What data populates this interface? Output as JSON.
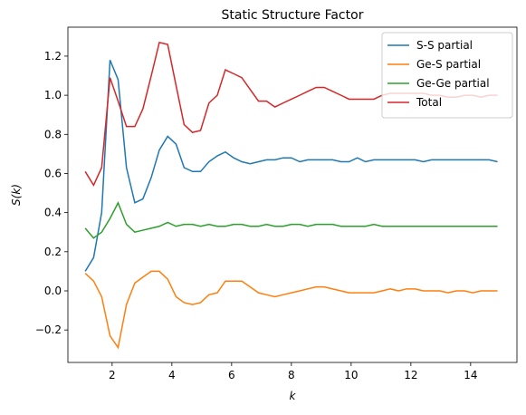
{
  "chart_data": {
    "type": "line",
    "title": "Static Structure Factor",
    "x_label": "k",
    "y_label": "S(k)",
    "x": [
      1.1,
      1.38,
      1.65,
      1.93,
      2.2,
      2.48,
      2.76,
      3.03,
      3.31,
      3.58,
      3.86,
      4.14,
      4.41,
      4.69,
      4.96,
      5.24,
      5.52,
      5.79,
      6.07,
      6.34,
      6.62,
      6.9,
      7.17,
      7.45,
      7.72,
      8.0,
      8.28,
      8.55,
      8.83,
      9.1,
      9.38,
      9.66,
      9.93,
      10.21,
      10.48,
      10.76,
      11.04,
      11.31,
      11.59,
      11.86,
      12.14,
      12.42,
      12.69,
      12.97,
      13.24,
      13.52,
      13.8,
      14.07,
      14.35,
      14.62,
      14.9
    ],
    "series": [
      {
        "name": "S-S partial",
        "color": "#1f77b4",
        "values": [
          0.1,
          0.17,
          0.4,
          1.18,
          1.08,
          0.63,
          0.45,
          0.47,
          0.58,
          0.72,
          0.79,
          0.75,
          0.63,
          0.61,
          0.61,
          0.66,
          0.69,
          0.71,
          0.68,
          0.66,
          0.65,
          0.66,
          0.67,
          0.67,
          0.68,
          0.68,
          0.66,
          0.67,
          0.67,
          0.67,
          0.67,
          0.66,
          0.66,
          0.68,
          0.66,
          0.67,
          0.67,
          0.67,
          0.67,
          0.67,
          0.67,
          0.66,
          0.67,
          0.67,
          0.67,
          0.67,
          0.67,
          0.67,
          0.67,
          0.67,
          0.66
        ]
      },
      {
        "name": "Ge-S partial",
        "color": "#ff7f0e",
        "values": [
          0.09,
          0.05,
          -0.03,
          -0.23,
          -0.29,
          -0.07,
          0.04,
          0.07,
          0.1,
          0.1,
          0.06,
          -0.03,
          -0.06,
          -0.07,
          -0.06,
          -0.02,
          -0.01,
          0.05,
          0.05,
          0.05,
          0.02,
          -0.01,
          -0.02,
          -0.03,
          -0.02,
          -0.01,
          0.0,
          0.01,
          0.02,
          0.02,
          0.01,
          0.0,
          -0.01,
          -0.01,
          -0.01,
          -0.01,
          0.0,
          0.01,
          0.0,
          0.01,
          0.01,
          0.0,
          0.0,
          0.0,
          -0.01,
          0.0,
          0.0,
          -0.01,
          0.0,
          0.0,
          0.0
        ]
      },
      {
        "name": "Ge-Ge partial",
        "color": "#2ca02c",
        "values": [
          0.32,
          0.27,
          0.3,
          0.37,
          0.45,
          0.34,
          0.3,
          0.31,
          0.32,
          0.33,
          0.35,
          0.33,
          0.34,
          0.34,
          0.33,
          0.34,
          0.33,
          0.33,
          0.34,
          0.34,
          0.33,
          0.33,
          0.34,
          0.33,
          0.33,
          0.34,
          0.34,
          0.33,
          0.34,
          0.34,
          0.34,
          0.33,
          0.33,
          0.33,
          0.33,
          0.34,
          0.33,
          0.33,
          0.33,
          0.33,
          0.33,
          0.33,
          0.33,
          0.33,
          0.33,
          0.33,
          0.33,
          0.33,
          0.33,
          0.33,
          0.33
        ]
      },
      {
        "name": "Total",
        "color": "#d62728",
        "values": [
          0.61,
          0.54,
          0.63,
          1.09,
          0.97,
          0.84,
          0.84,
          0.93,
          1.1,
          1.27,
          1.26,
          1.05,
          0.85,
          0.81,
          0.82,
          0.96,
          1.0,
          1.13,
          1.11,
          1.09,
          1.03,
          0.97,
          0.97,
          0.94,
          0.96,
          0.98,
          1.0,
          1.02,
          1.04,
          1.04,
          1.02,
          1.0,
          0.98,
          0.98,
          0.98,
          0.98,
          1.0,
          1.01,
          1.01,
          1.01,
          1.01,
          1.01,
          1.0,
          1.0,
          0.99,
          0.99,
          1.0,
          1.0,
          0.99,
          1.0,
          1.0
        ]
      }
    ],
    "xlim": [
      0.52,
      15.55
    ],
    "ylim": [
      -0.366,
      1.348
    ],
    "xticks": [
      2,
      4,
      6,
      8,
      10,
      12,
      14
    ],
    "yticks": [
      {
        "value": -0.2,
        "label": "−0.2"
      },
      {
        "value": 0,
        "label": "0.0"
      },
      0.2,
      0.4,
      0.6,
      0.8,
      {
        "value": 1,
        "label": "1.0"
      },
      1.2
    ],
    "grid": false,
    "legend": "upper right"
  }
}
